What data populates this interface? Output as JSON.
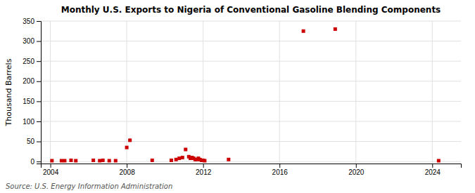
{
  "chart_data": {
    "type": "scatter",
    "title": "Monthly U.S. Exports to Nigeria of Conventional Gasoline Blending Components",
    "y_label": "Thousand Barrels",
    "annotations": [
      "Source: U.S. Energy Information Administration"
    ],
    "color": "#cc0000",
    "marker": "square",
    "grid": true,
    "xlim": [
      2003.5,
      2025.5
    ],
    "xticks": [
      2004,
      2008,
      2012,
      2016,
      2020,
      2024
    ],
    "ylim": [
      -5,
      350
    ],
    "yticks": [
      0,
      50,
      100,
      150,
      200,
      250,
      300,
      350
    ],
    "x": [
      2004.083,
      2004.583,
      2004.75,
      2005.083,
      2005.333,
      2006.25,
      2006.583,
      2006.75,
      2007.083,
      2007.417,
      2008.0,
      2008.167,
      2009.333,
      2010.333,
      2010.583,
      2010.75,
      2010.917,
      2011.083,
      2011.25,
      2011.333,
      2011.417,
      2011.5,
      2011.583,
      2011.667,
      2011.75,
      2011.833,
      2011.917,
      2012.0,
      2012.083,
      2013.333,
      2017.25,
      2018.917,
      2024.333
    ],
    "values": [
      2,
      2,
      2,
      3,
      2,
      3,
      2,
      3,
      2,
      2,
      35,
      53,
      3,
      3,
      5,
      8,
      10,
      30,
      12,
      8,
      10,
      8,
      5,
      5,
      8,
      5,
      3,
      3,
      2,
      5,
      325,
      330,
      2
    ]
  }
}
